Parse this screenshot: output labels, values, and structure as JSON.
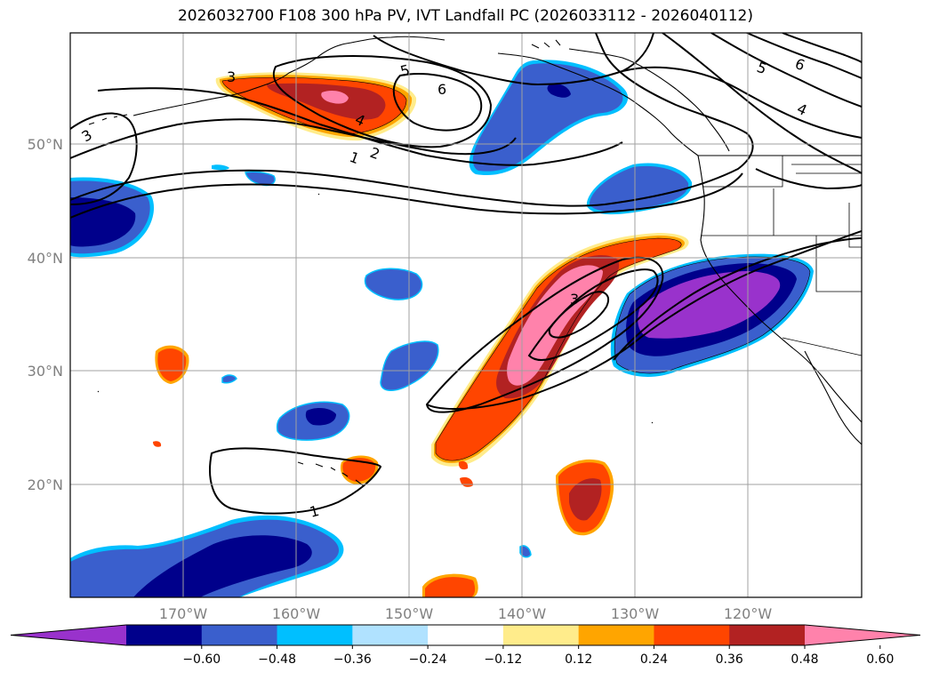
{
  "title": "2026032700 F108 300 hPa PV, IVT Landfall PC (2026033112 - 2026040112)",
  "lat_labels": [
    "50°N",
    "40°N",
    "30°N",
    "20°N"
  ],
  "lon_labels": [
    "170°W",
    "160°W",
    "150°W",
    "140°W",
    "130°W",
    "120°W"
  ],
  "contour_labels": [
    "1",
    "2",
    "3",
    "4",
    "5",
    "6",
    "3",
    "4",
    "5",
    "6",
    "3",
    "1"
  ],
  "colorbar": {
    "ticks": [
      "−0.60",
      "−0.48",
      "−0.36",
      "−0.24",
      "−0.12",
      "0.12",
      "0.24",
      "0.36",
      "0.48",
      "0.60"
    ],
    "colors": [
      "#9932cc",
      "#00008b",
      "#3a5fcd",
      "#00bfff",
      "#b0e2ff",
      "#ffffff",
      "#ffec8b",
      "#ffa500",
      "#ff4500",
      "#b22222",
      "#ff82ab"
    ]
  }
}
